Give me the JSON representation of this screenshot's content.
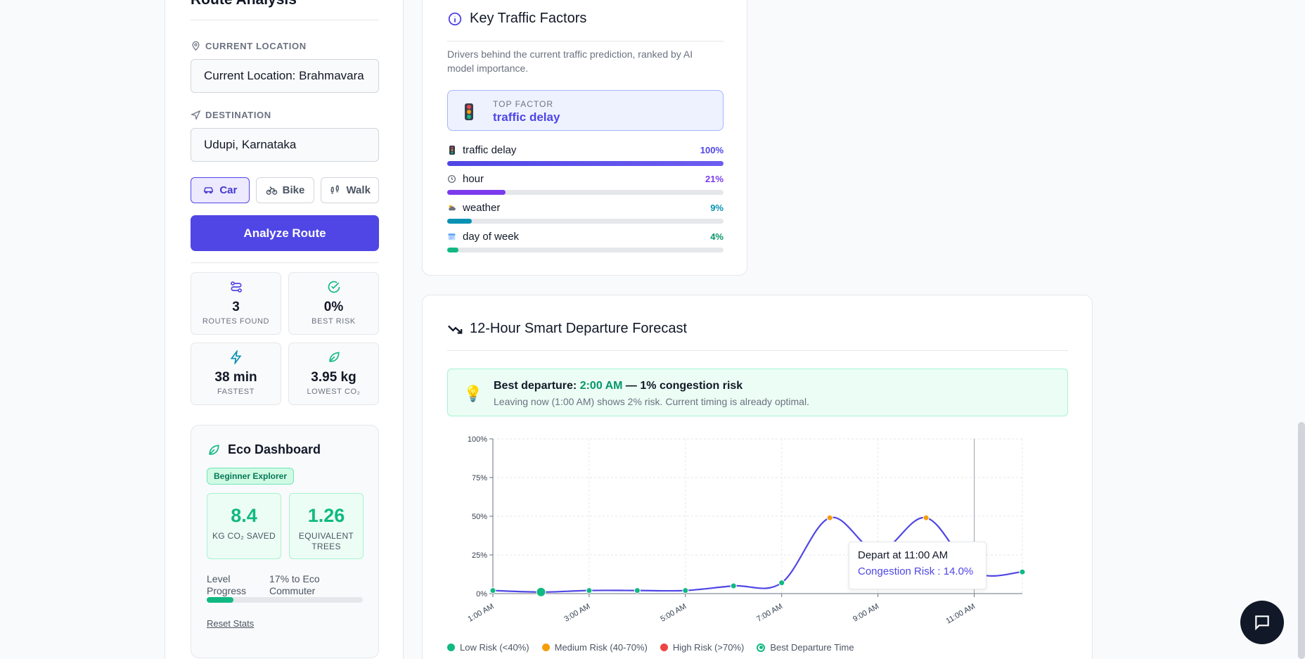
{
  "sidebar": {
    "title": "Route Analysis",
    "current_location": {
      "label": "CURRENT LOCATION",
      "value": "Current Location: Brahmavara"
    },
    "destination": {
      "label": "DESTINATION",
      "value": "Udupi, Karnataka"
    },
    "modes": [
      "Car",
      "Bike",
      "Walk"
    ],
    "active_mode": "Car",
    "analyze_label": "Analyze Route",
    "stats": [
      {
        "value": "3",
        "label": "ROUTES FOUND",
        "icon": "route-icon"
      },
      {
        "value": "0%",
        "label": "BEST RISK",
        "icon": "check-circle-icon"
      },
      {
        "value": "38 min",
        "label": "FASTEST",
        "icon": "lightning-icon"
      },
      {
        "value": "3.95 kg",
        "label": "LOWEST CO₂",
        "icon": "leaf-icon"
      }
    ],
    "eco": {
      "title": "Eco Dashboard",
      "badge": "Beginner Explorer",
      "saved": {
        "value": "8.4",
        "label": "KG CO₂ SAVED"
      },
      "trees": {
        "value": "1.26",
        "label_1": "EQUIVALENT",
        "label_2": "TREES"
      },
      "level_label_1": "Level",
      "level_label_2": "Progress",
      "level_text_1": "17% to Eco",
      "level_text_2": "Commuter",
      "level_progress": 0.17,
      "reset": "Reset Stats"
    }
  },
  "factors_card": {
    "title": "Key Traffic Factors",
    "description": "Drivers behind the current traffic prediction, ranked by AI model importance.",
    "top_label": "TOP FACTOR",
    "top_value": "traffic delay",
    "factors": [
      {
        "name": "traffic delay",
        "pct": "100%",
        "value": 1.0,
        "color": "#4f46e5",
        "pct_color": "#4f46e5"
      },
      {
        "name": "hour",
        "pct": "21%",
        "value": 0.21,
        "color": "#7c3aed",
        "pct_color": "#7c3aed"
      },
      {
        "name": "weather",
        "pct": "9%",
        "value": 0.09,
        "color": "#0891b2",
        "pct_color": "#0891b2"
      },
      {
        "name": "day of week",
        "pct": "4%",
        "value": 0.04,
        "color": "#10b981",
        "pct_color": "#059669"
      }
    ]
  },
  "forecast_card": {
    "title": "12-Hour Smart Departure Forecast",
    "best_prefix": "Best departure:",
    "best_time": "2:00 AM",
    "best_suffix": "— 1% congestion risk",
    "best_detail": "Leaving now (1:00 AM) shows 2% risk. Current timing is already optimal.",
    "tooltip_title": "Depart at 11:00 AM",
    "tooltip_value": "Congestion Risk : 14.0%"
  },
  "chart_data": {
    "type": "line",
    "x": [
      "1:00 AM",
      "2:00 AM",
      "3:00 AM",
      "4:00 AM",
      "5:00 AM",
      "6:00 AM",
      "7:00 AM",
      "8:00 AM",
      "9:00 AM",
      "10:00 AM",
      "11:00 AM",
      "12:00 PM"
    ],
    "x_tick_labels": [
      "1:00 AM",
      "3:00 AM",
      "5:00 AM",
      "7:00 AM",
      "9:00 AM",
      "11:00 AM"
    ],
    "series": [
      {
        "values": [
          2,
          1,
          2,
          2,
          2,
          5,
          7,
          49,
          27,
          49,
          14,
          14
        ]
      }
    ],
    "point_risk": [
      "low",
      "best",
      "low",
      "low",
      "low",
      "low",
      "low",
      "medium",
      "low",
      "medium",
      "active",
      "low"
    ],
    "yticks": [
      "0%",
      "25%",
      "50%",
      "75%",
      "100%"
    ],
    "ylim": [
      0,
      100
    ],
    "grid": true,
    "colors": {
      "line": "#4f46e5",
      "low": "#10b981",
      "medium": "#f59e0b",
      "high": "#ef4444",
      "best": "#10b981",
      "active": "#4f46e5"
    },
    "legend": [
      {
        "label": "Low Risk (<40%)",
        "color": "#10b981",
        "kind": "dot"
      },
      {
        "label": "Medium Risk (40-70%)",
        "color": "#f59e0b",
        "kind": "dot"
      },
      {
        "label": "High Risk (>70%)",
        "color": "#ef4444",
        "kind": "dot"
      },
      {
        "label": "Best Departure Time",
        "color": "#10b981",
        "kind": "ring"
      }
    ]
  }
}
